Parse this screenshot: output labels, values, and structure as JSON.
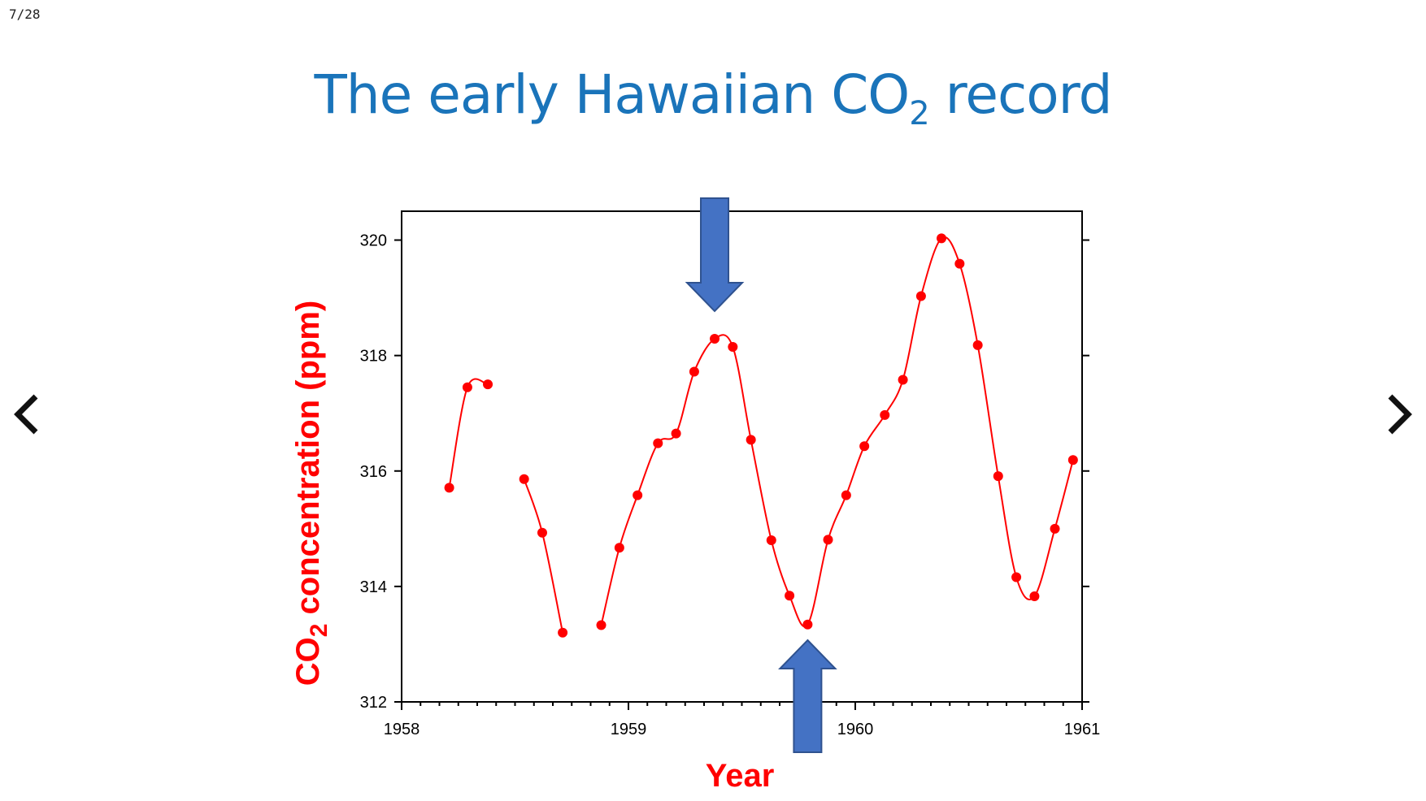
{
  "slide": {
    "counter": "7/28",
    "title_main": "The early Hawaiian CO",
    "title_sub": "2",
    "title_end": " record"
  },
  "navigation": {
    "prev_icon": "chevron-left-icon",
    "next_icon": "chevron-right-icon"
  },
  "colors": {
    "title": "#1a74ba",
    "series": "#ff0000",
    "axis_label": "#ff0000",
    "arrow_fill": "#4472c4",
    "arrow_stroke": "#2f528f"
  },
  "chart_data": {
    "type": "line",
    "title": "",
    "xlabel": "Year",
    "ylabel_main": "CO",
    "ylabel_sub": "2",
    "ylabel_end": " concentration (ppm)",
    "xlim": [
      1958,
      1961
    ],
    "ylim": [
      312,
      320.5
    ],
    "x_ticks": [
      1958,
      1959,
      1960,
      1961
    ],
    "y_ticks": [
      312,
      314,
      316,
      318,
      320
    ],
    "grid": false,
    "series": [
      {
        "segments": [
          [
            [
              1958.21,
              315.71
            ],
            [
              1958.29,
              317.45
            ],
            [
              1958.38,
              317.5
            ]
          ],
          [
            [
              1958.54,
              315.86
            ],
            [
              1958.62,
              314.93
            ],
            [
              1958.71,
              313.2
            ]
          ],
          [
            [
              1958.88,
              313.33
            ],
            [
              1958.96,
              314.67
            ],
            [
              1959.04,
              315.58
            ],
            [
              1959.13,
              316.48
            ],
            [
              1959.21,
              316.65
            ],
            [
              1959.29,
              317.72
            ],
            [
              1959.38,
              318.29
            ],
            [
              1959.46,
              318.15
            ],
            [
              1959.54,
              316.54
            ],
            [
              1959.63,
              314.8
            ],
            [
              1959.71,
              313.84
            ],
            [
              1959.79,
              313.34
            ],
            [
              1959.88,
              314.81
            ],
            [
              1959.96,
              315.58
            ],
            [
              1960.04,
              316.43
            ],
            [
              1960.13,
              316.97
            ],
            [
              1960.21,
              317.58
            ],
            [
              1960.29,
              319.03
            ],
            [
              1960.38,
              320.03
            ],
            [
              1960.46,
              319.59
            ],
            [
              1960.54,
              318.18
            ],
            [
              1960.63,
              315.91
            ],
            [
              1960.71,
              314.16
            ],
            [
              1960.79,
              313.83
            ],
            [
              1960.88,
              315.0
            ],
            [
              1960.96,
              316.19
            ]
          ]
        ]
      }
    ],
    "annotations": [
      {
        "type": "arrow-down",
        "x": 1959.38,
        "meaning": "peak"
      },
      {
        "type": "arrow-up",
        "x": 1959.79,
        "meaning": "trough"
      }
    ]
  }
}
